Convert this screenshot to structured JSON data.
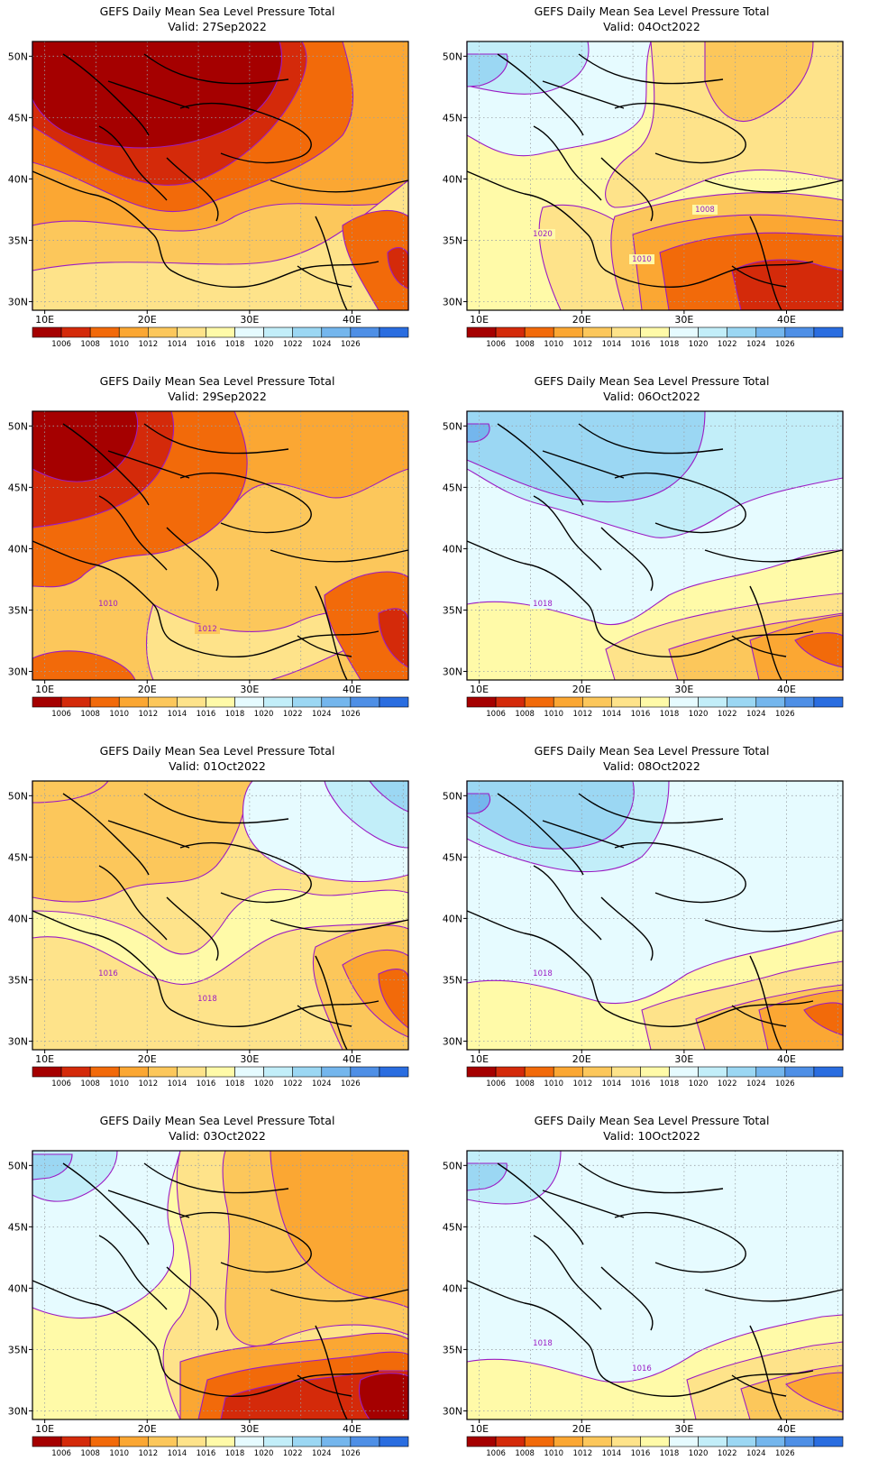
{
  "colorbar": {
    "labels": [
      "1006",
      "1008",
      "1010",
      "1012",
      "1014",
      "1016",
      "1018",
      "1020",
      "1022",
      "1024",
      "1026"
    ],
    "colors": [
      "#a50000",
      "#d42a0a",
      "#f26a0a",
      "#fba733",
      "#fcc75b",
      "#fee38a",
      "#fffaa8",
      "#e6fbff",
      "#c2eef9",
      "#9bd7f3",
      "#74b6ed",
      "#4e8fe6",
      "#2a6de0"
    ]
  },
  "axes": {
    "lat_labels": [
      "50N",
      "45N",
      "40N",
      "35N",
      "30N"
    ],
    "lon_labels": [
      "10E",
      "20E",
      "30E",
      "40E"
    ]
  },
  "panels": [
    {
      "title": "GEFS Daily Mean Sea Level Pressure Total",
      "valid": "Valid: 27Sep2022",
      "contour_labels": []
    },
    {
      "title": "GEFS Daily Mean Sea Level Pressure Total",
      "valid": "Valid: 04Oct2022",
      "contour_labels": [
        "1020",
        "1010",
        "1008"
      ]
    },
    {
      "title": "GEFS Daily Mean Sea Level Pressure Total",
      "valid": "Valid: 29Sep2022",
      "contour_labels": [
        "1010",
        "1012"
      ]
    },
    {
      "title": "GEFS Daily Mean Sea Level Pressure Total",
      "valid": "Valid: 06Oct2022",
      "contour_labels": [
        "1018"
      ]
    },
    {
      "title": "GEFS Daily Mean Sea Level Pressure Total",
      "valid": "Valid: 01Oct2022",
      "contour_labels": [
        "1016",
        "1018"
      ]
    },
    {
      "title": "GEFS Daily Mean Sea Level Pressure Total",
      "valid": "Valid: 08Oct2022",
      "contour_labels": [
        "1018"
      ]
    },
    {
      "title": "GEFS Daily Mean Sea Level Pressure Total",
      "valid": "Valid: 03Oct2022",
      "contour_labels": []
    },
    {
      "title": "GEFS Daily Mean Sea Level Pressure Total",
      "valid": "Valid: 10Oct2022",
      "contour_labels": [
        "1018",
        "1016"
      ]
    }
  ]
}
